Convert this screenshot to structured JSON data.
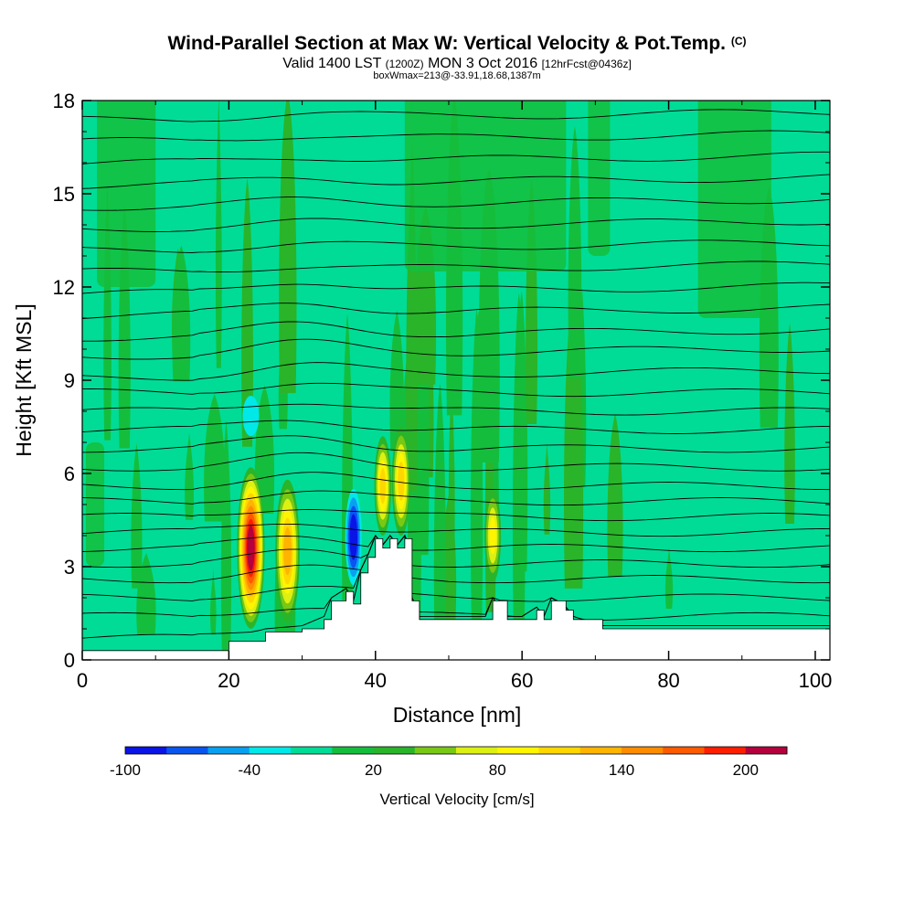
{
  "title": {
    "main": "Wind-Parallel Section at Max W: Vertical Velocity & Pot.Temp.",
    "copyright": "(C)",
    "valid": "Valid 1400 LST",
    "valid_z": "(1200Z)",
    "date": "MON 3 Oct 2016",
    "fcst": "[12hrFcst@0436z]",
    "box": "boxWmax=213@-33.91,18.68,1387m"
  },
  "chart_data": {
    "type": "heatmap",
    "xlabel": "Distance [nm]",
    "ylabel": "Height [Kft MSL]",
    "xlim": [
      0,
      102
    ],
    "ylim": [
      0,
      18
    ],
    "x_ticks": [
      "0",
      "20",
      "40",
      "60",
      "80",
      "100"
    ],
    "y_ticks": [
      "0",
      "3",
      "6",
      "9",
      "12",
      "15",
      "18"
    ],
    "colorbar": {
      "label": "Vertical Velocity [cm/s]",
      "tick_labels": [
        "-100",
        "-40",
        "20",
        "80",
        "140",
        "200"
      ],
      "tick_values": [
        -100,
        -40,
        20,
        80,
        140,
        200
      ],
      "bins": [
        -100,
        -80,
        -60,
        -40,
        -20,
        0,
        20,
        40,
        60,
        80,
        100,
        120,
        140,
        160,
        180,
        200,
        220
      ],
      "colors": [
        "#0a14e6",
        "#0a55f0",
        "#0aa0f0",
        "#00e8e8",
        "#00dc96",
        "#14be3c",
        "#2ab42a",
        "#78c814",
        "#dcf014",
        "#fff500",
        "#ffd700",
        "#ffb400",
        "#ff8c00",
        "#ff5a00",
        "#ff1e00",
        "#b4003c"
      ]
    },
    "terrain_height_kft": {
      "x": [
        0,
        17,
        20,
        25,
        30,
        33,
        34,
        36,
        37,
        38,
        39,
        40,
        41,
        42,
        43,
        44,
        45,
        46,
        55,
        56,
        58,
        60,
        62,
        63,
        64,
        66,
        67,
        71,
        102
      ],
      "y": [
        0.3,
        0.3,
        0.6,
        0.9,
        1.0,
        1.3,
        1.9,
        2.2,
        1.8,
        2.8,
        3.3,
        3.9,
        3.6,
        3.9,
        3.6,
        3.9,
        1.9,
        1.3,
        1.3,
        1.9,
        1.3,
        1.3,
        1.6,
        1.3,
        1.9,
        1.6,
        1.3,
        1.0,
        1.0
      ]
    },
    "features": [
      {
        "x": 23,
        "y_bottom": 1.0,
        "y_top": 6.2,
        "max_cms": 200,
        "sign": "updraft"
      },
      {
        "x": 28,
        "y_bottom": 1.2,
        "y_top": 5.8,
        "max_cms": 120,
        "sign": "updraft"
      },
      {
        "x": 37,
        "y_bottom": 2.4,
        "y_top": 5.5,
        "max_cms": -100,
        "sign": "downdraft"
      },
      {
        "x": 41,
        "y_bottom": 4.0,
        "y_top": 7.2,
        "max_cms": 100,
        "sign": "updraft"
      },
      {
        "x": 43.5,
        "y_bottom": 4.0,
        "y_top": 7.5,
        "max_cms": 100,
        "sign": "updraft"
      },
      {
        "x": 56,
        "y_bottom": 2.5,
        "y_top": 5.5,
        "max_cms": 80,
        "sign": "updraft"
      },
      {
        "x": 23,
        "y_bottom": 7.2,
        "y_top": 8.5,
        "max_cms": -40,
        "sign": "downdraft"
      }
    ],
    "isentrope_base_heights_kft": [
      0.7,
      1.4,
      2.0,
      2.6,
      3.1,
      3.6,
      4.1,
      4.6,
      5.1,
      5.6,
      6.2,
      6.8,
      7.4,
      8.0,
      8.6,
      9.2,
      9.9,
      10.5,
      11.2,
      11.9,
      12.6,
      13.3,
      14.0,
      14.7,
      15.4,
      16.1,
      16.8,
      17.5
    ]
  }
}
